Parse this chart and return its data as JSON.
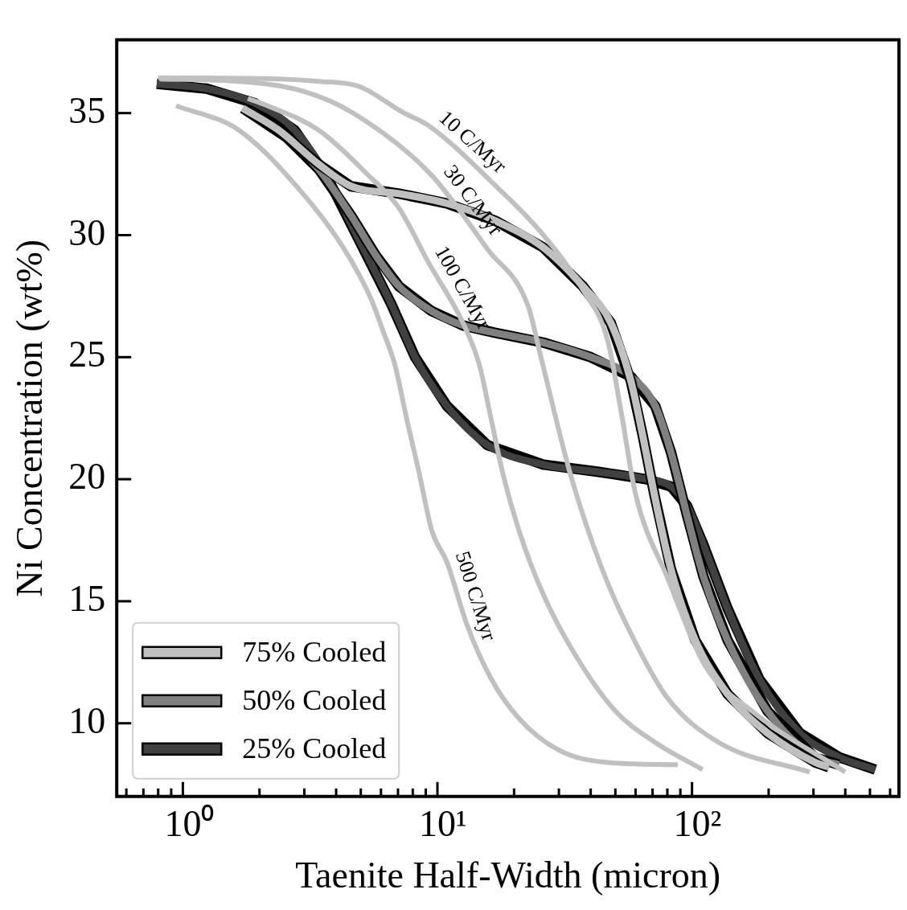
{
  "chart_data": {
    "type": "line",
    "xlabel": "Taenite Half-Width (micron)",
    "ylabel": "Ni Concentration (wt%)",
    "log": "x",
    "xlim": [
      0.55,
      650
    ],
    "ylim": [
      7,
      38
    ],
    "xticks": [
      {
        "value": 0.6,
        "label": null
      },
      {
        "value": 0.7,
        "label": null
      },
      {
        "value": 0.8,
        "label": null
      },
      {
        "value": 0.9,
        "label": null
      },
      {
        "value": 1,
        "label": "10⁰"
      },
      {
        "value": 2,
        "label": null
      },
      {
        "value": 3,
        "label": null
      },
      {
        "value": 4,
        "label": null
      },
      {
        "value": 5,
        "label": null
      },
      {
        "value": 6,
        "label": null
      },
      {
        "value": 7,
        "label": null
      },
      {
        "value": 8,
        "label": null
      },
      {
        "value": 9,
        "label": null
      },
      {
        "value": 10,
        "label": "10¹"
      },
      {
        "value": 20,
        "label": null
      },
      {
        "value": 30,
        "label": null
      },
      {
        "value": 40,
        "label": null
      },
      {
        "value": 50,
        "label": null
      },
      {
        "value": 60,
        "label": null
      },
      {
        "value": 70,
        "label": null
      },
      {
        "value": 80,
        "label": null
      },
      {
        "value": 90,
        "label": null
      },
      {
        "value": 100,
        "label": "10²"
      },
      {
        "value": 200,
        "label": null
      },
      {
        "value": 300,
        "label": null
      },
      {
        "value": 400,
        "label": null
      },
      {
        "value": 500,
        "label": null
      },
      {
        "value": 600,
        "label": null
      }
    ],
    "yticks": [
      10,
      15,
      20,
      25,
      30,
      35
    ],
    "legend": "bottom left",
    "marker": "none",
    "series": [
      {
        "color": "#c0c0c0",
        "x": [
          0.94,
          1.66,
          2.96,
          4.26,
          5.48,
          6.1,
          6.8,
          7.6,
          8.5,
          9.5,
          10.9,
          13.1,
          16.3,
          20.9,
          30,
          46,
          88
        ],
        "values": [
          35.3,
          34.3,
          31.7,
          29.5,
          27.4,
          26.1,
          24.7,
          22.4,
          20.2,
          17.9,
          16.6,
          14.0,
          11.8,
          10.2,
          8.9,
          8.4,
          8.3
        ]
      },
      {
        "color": "#c0c0c0",
        "x": [
          1.8,
          2.15,
          3.42,
          5.3,
          7.07,
          9.2,
          12.6,
          14.6,
          16.3,
          18.1,
          20.9,
          26,
          34.8,
          50,
          72,
          110
        ],
        "values": [
          35.6,
          35.3,
          34.3,
          32.5,
          31.1,
          28.9,
          26.4,
          24.7,
          22.4,
          20.2,
          17.9,
          15.3,
          12.8,
          10.5,
          9.2,
          8.1
        ]
      },
      {
        "color": "#c0c0c0",
        "x": [
          0.81,
          1.66,
          2.96,
          4.67,
          9.4,
          15.8,
          22.7,
          25.5,
          33.3,
          44.8,
          60,
          80.6,
          128,
          290
        ],
        "values": [
          36.4,
          36.3,
          35.9,
          35.0,
          32.5,
          29.4,
          27.1,
          25.0,
          20.2,
          16.2,
          13.3,
          11.0,
          9.2,
          8.0
        ]
      },
      {
        "color": "#c0c0c0",
        "x": [
          0.8,
          2.38,
          3.42,
          4.9,
          7.4,
          9.2,
          17.4,
          25.6,
          37.6,
          46.6,
          52.8,
          60,
          80.6,
          112,
          177,
          400
        ],
        "values": [
          36.45,
          36.4,
          36.3,
          36.1,
          35.0,
          34.5,
          31.9,
          30.1,
          27.7,
          25.7,
          22.7,
          19.4,
          15.9,
          12.4,
          10.4,
          8.0
        ]
      },
      {
        "name": "75% Cooled",
        "color": "#c0c0c0",
        "x": [
          1.72,
          2.38,
          3.42,
          4.58,
          7.07,
          10.9,
          16.8,
          26,
          37.3,
          48,
          57.6,
          64,
          71.7,
          82.7,
          103,
          138,
          198,
          304,
          345
        ],
        "values": [
          35.2,
          34.3,
          32.9,
          32.0,
          31.7,
          31.3,
          30.6,
          29.5,
          27.9,
          26.4,
          24.0,
          21.8,
          19.2,
          16.3,
          13.4,
          11.2,
          9.6,
          8.4,
          8.2
        ]
      },
      {
        "name": "50% Cooled",
        "color": "#808080",
        "x": [
          1.78,
          2.56,
          3.42,
          4.58,
          5.7,
          7.07,
          9.45,
          12.6,
          16.8,
          26,
          40,
          57.6,
          71.7,
          82.7,
          95.7,
          111,
          138,
          198,
          304,
          377
        ],
        "values": [
          35.1,
          34.0,
          32.7,
          30.8,
          29.2,
          27.9,
          26.9,
          26.3,
          26.0,
          25.6,
          25.0,
          24.2,
          23.0,
          21.1,
          18.5,
          16.0,
          13.4,
          10.5,
          8.6,
          8.3
        ]
      },
      {
        "name": "25% Cooled",
        "color": "#404040",
        "x": [
          0.79,
          1.24,
          1.92,
          2.75,
          3.68,
          4.92,
          6.57,
          8.17,
          10.9,
          15.7,
          26,
          43,
          66,
          82.7,
          95.7,
          111,
          138,
          184,
          265,
          380,
          525
        ],
        "values": [
          36.2,
          36.0,
          35.4,
          34.3,
          32.4,
          29.8,
          27.2,
          25.0,
          23.0,
          21.4,
          20.6,
          20.3,
          20.0,
          19.7,
          18.9,
          17.3,
          14.7,
          11.8,
          9.6,
          8.6,
          8.1
        ]
      }
    ],
    "annotations": [
      {
        "text": "10 C/Myr",
        "x": 12.4,
        "y": 33.3
      },
      {
        "text": "30 C/Myr",
        "x": 12.2,
        "y": 31.0
      },
      {
        "text": "100 C/Myr",
        "x": 11,
        "y": 27.5
      },
      {
        "text": "500 C/Myr",
        "x": 12.2,
        "y": 15.0
      }
    ]
  }
}
